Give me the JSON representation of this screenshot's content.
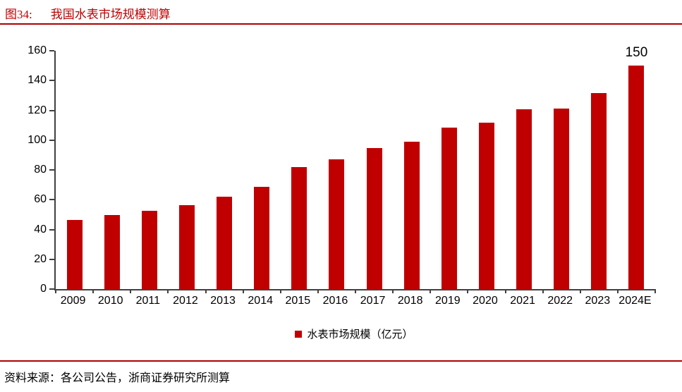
{
  "figure": {
    "label": "图34:",
    "title": "我国水表市场规模测算"
  },
  "colors": {
    "accent": "#C00000",
    "rule": "#AE0000",
    "axis": "#404040"
  },
  "source_note": "资料来源：各公司公告，浙商证券研究所测算",
  "chart_data": {
    "type": "bar",
    "title": "我国水表市场规模测算",
    "categories": [
      "2009",
      "2010",
      "2011",
      "2012",
      "2013",
      "2014",
      "2015",
      "2016",
      "2017",
      "2018",
      "2019",
      "2020",
      "2021",
      "2022",
      "2023",
      "2024E"
    ],
    "values": [
      46.5,
      49.5,
      52.5,
      56.5,
      62,
      68.5,
      82,
      87,
      94.5,
      99,
      108.5,
      111.5,
      120.5,
      121,
      131.5,
      150
    ],
    "xlabel": "",
    "ylabel": "",
    "ylim": [
      0,
      160
    ],
    "yticks": [
      0,
      20,
      40,
      60,
      80,
      100,
      120,
      140,
      160
    ],
    "grid": false,
    "bar_color": "#C00000",
    "legend": {
      "label": "水表市场规模（亿元）",
      "color": "#C00000",
      "position": "bottom-center"
    },
    "annotation": {
      "category": "2024E",
      "text": "150"
    }
  }
}
